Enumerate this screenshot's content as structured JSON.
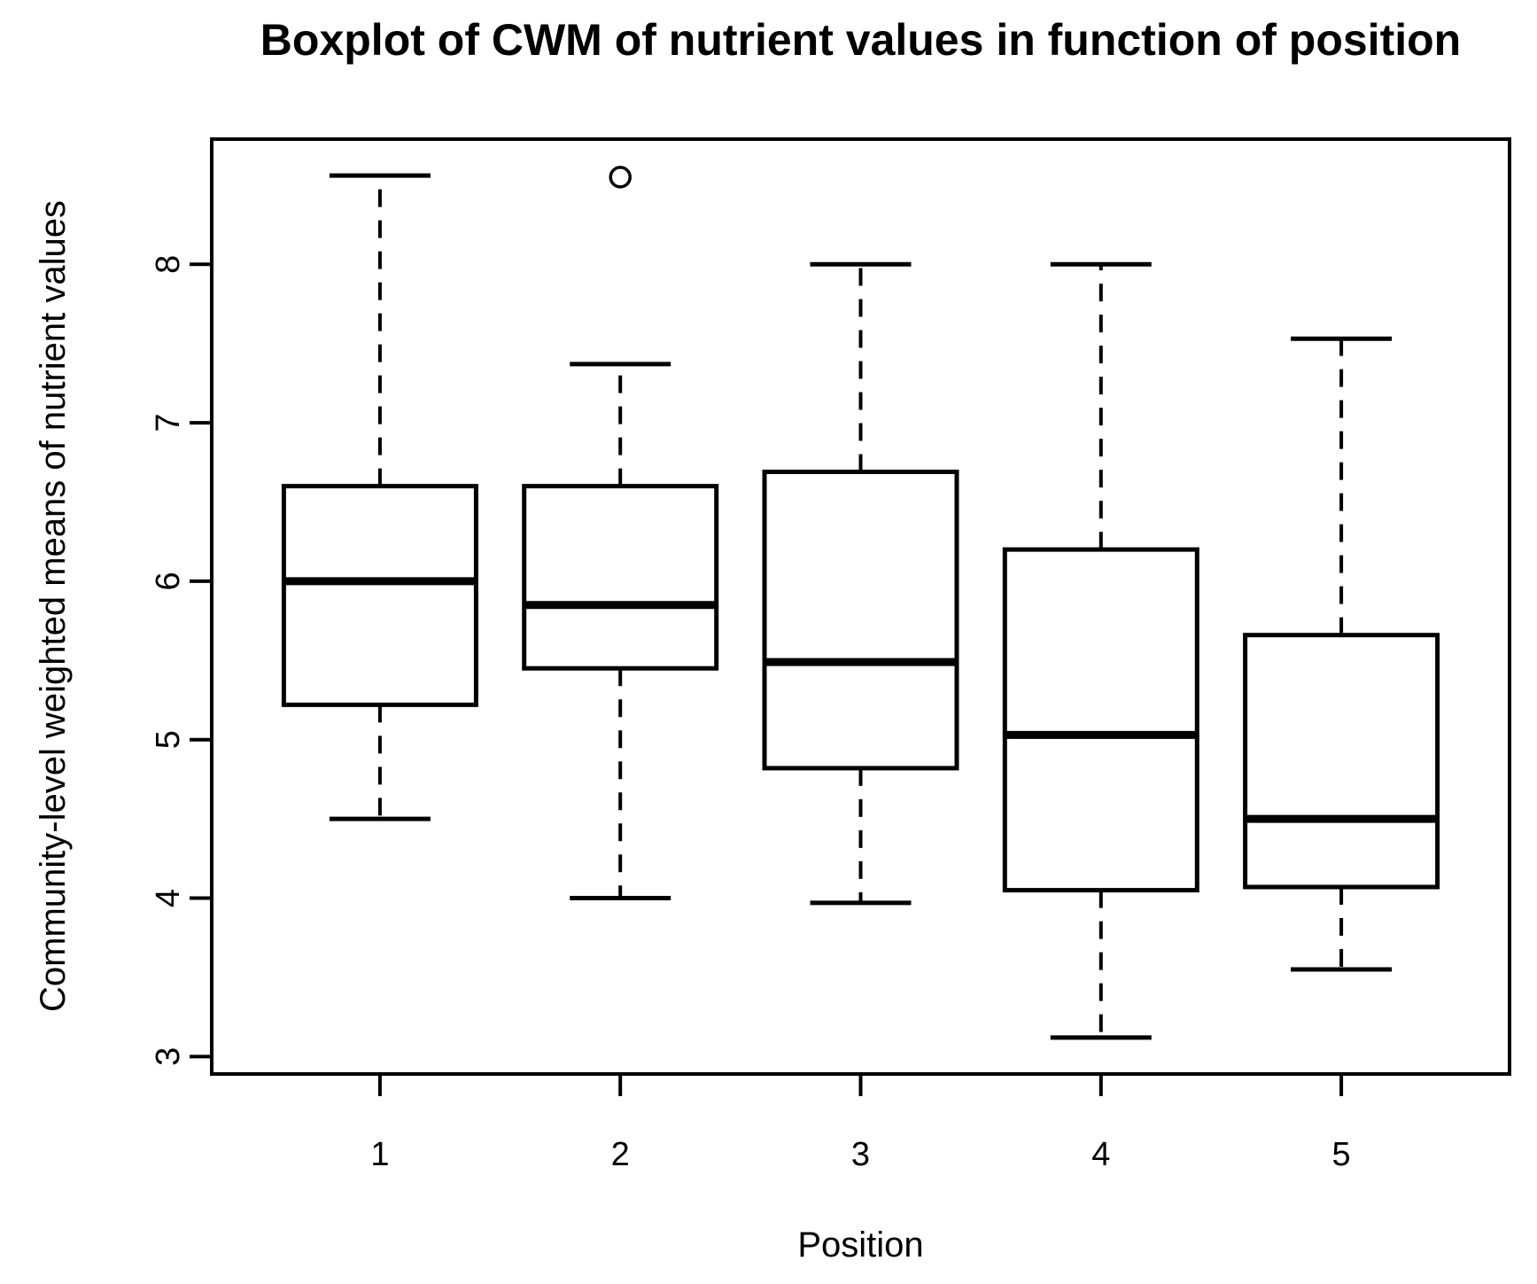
{
  "chart_data": {
    "type": "boxplot",
    "title": "Boxplot of CWM of nutrient values in function of position",
    "xlabel": "Position",
    "ylabel": "Community-level weighted means of nutrient values",
    "categories": [
      "1",
      "2",
      "3",
      "4",
      "5"
    ],
    "y_ticks": [
      3,
      4,
      5,
      6,
      7,
      8
    ],
    "xlim": [
      0.3,
      5.7
    ],
    "ylim": [
      2.89,
      8.79
    ],
    "grid": false,
    "legend": "none",
    "stroke_color": "#000000",
    "background_color": "#ffffff",
    "series": [
      {
        "position": 1,
        "whisker_low": 4.5,
        "q1": 5.22,
        "median": 6.0,
        "q3": 6.6,
        "whisker_high": 8.56,
        "outliers": []
      },
      {
        "position": 2,
        "whisker_low": 4.0,
        "q1": 5.45,
        "median": 5.85,
        "q3": 6.6,
        "whisker_high": 7.37,
        "outliers": [
          8.55
        ]
      },
      {
        "position": 3,
        "whisker_low": 3.97,
        "q1": 4.82,
        "median": 5.49,
        "q3": 6.69,
        "whisker_high": 8.0,
        "outliers": []
      },
      {
        "position": 4,
        "whisker_low": 3.12,
        "q1": 4.05,
        "median": 5.03,
        "q3": 6.2,
        "whisker_high": 8.0,
        "outliers": []
      },
      {
        "position": 5,
        "whisker_low": 3.55,
        "q1": 4.07,
        "median": 4.5,
        "q3": 5.66,
        "whisker_high": 7.53,
        "outliers": []
      }
    ]
  }
}
